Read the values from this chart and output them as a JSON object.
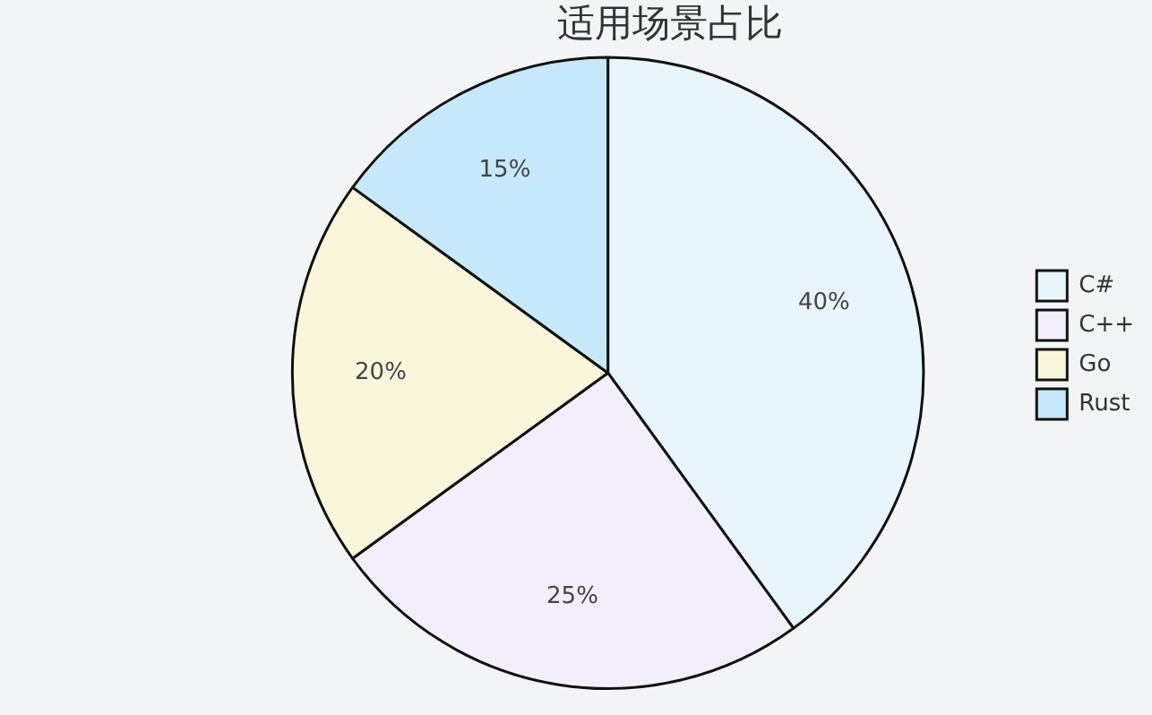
{
  "chart_data": {
    "type": "pie",
    "title": "适用场景占比",
    "categories": [
      "C#",
      "C++",
      "Go",
      "Rust"
    ],
    "values": [
      40,
      25,
      20,
      15
    ],
    "colors": [
      "#e8f5fc",
      "#f3eefb",
      "#faf6dc",
      "#c5e8fb"
    ],
    "value_labels": [
      "40%",
      "25%",
      "20%",
      "15%"
    ],
    "legend": "right"
  }
}
